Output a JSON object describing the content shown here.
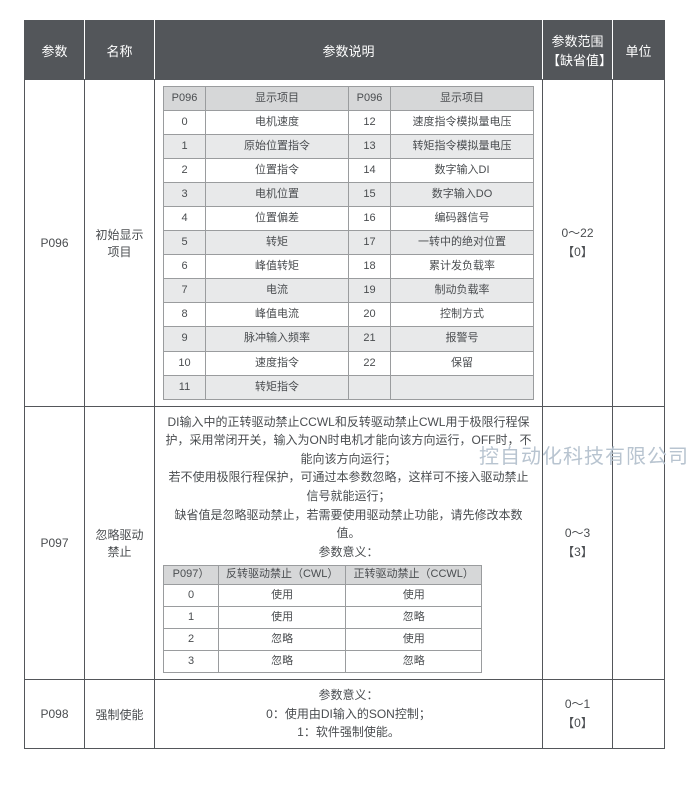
{
  "watermark": "控自动化科技有限公司",
  "headers": {
    "param": "参数",
    "name": "名称",
    "desc": "参数说明",
    "range": "参数范围\n【缺省值】",
    "unit": "单位"
  },
  "rows": [
    {
      "param": "P096",
      "name": "初始显示\n项目",
      "range": "0～22\n【0】",
      "unit": "",
      "p096": {
        "hdr": [
          "P096",
          "显示项目",
          "P096",
          "显示项目"
        ],
        "items": [
          [
            "0",
            "电机速度",
            "12",
            "速度指令模拟量电压"
          ],
          [
            "1",
            "原始位置指令",
            "13",
            "转矩指令模拟量电压"
          ],
          [
            "2",
            "位置指令",
            "14",
            "数字输入DI"
          ],
          [
            "3",
            "电机位置",
            "15",
            "数字输入DO"
          ],
          [
            "4",
            "位置偏差",
            "16",
            "编码器信号"
          ],
          [
            "5",
            "转矩",
            "17",
            "一转中的绝对位置"
          ],
          [
            "6",
            "峰值转矩",
            "18",
            "累计发负载率"
          ],
          [
            "7",
            "电流",
            "19",
            "制动负载率"
          ],
          [
            "8",
            "峰值电流",
            "20",
            "控制方式"
          ],
          [
            "9",
            "脉冲输入频率",
            "21",
            "报警号"
          ],
          [
            "10",
            "速度指令",
            "22",
            "保留"
          ],
          [
            "11",
            "转矩指令",
            "",
            ""
          ]
        ]
      }
    },
    {
      "param": "P097",
      "name": "忽略驱动\n禁止",
      "range": "0～3\n【3】",
      "unit": "",
      "text": "DI输入中的正转驱动禁止CCWL和反转驱动禁止CWL用于极限行程保护，采用常闭开关，输入为ON时电机才能向该方向运行，OFF时，不能向该方向运行；\n若不使用极限行程保护，可通过本参数忽略，这样可不接入驱动禁止信号就能运行；\n缺省值是忽略驱动禁止，若需要使用驱动禁止功能，请先修改本数值。\n参数意义：",
      "p097": {
        "hdr": [
          "P097）",
          "反转驱动禁止（CWL）",
          "正转驱动禁止（CCWL）"
        ],
        "rows": [
          [
            "0",
            "使用",
            "使用"
          ],
          [
            "1",
            "使用",
            "忽略"
          ],
          [
            "2",
            "忽略",
            "使用"
          ],
          [
            "3",
            "忽略",
            "忽略"
          ]
        ]
      }
    },
    {
      "param": "P098",
      "name": "强制使能",
      "range": "0～1\n【0】",
      "unit": "",
      "text": "参数意义：\n0：使用由DI输入的SON控制；\n1：软件强制使能。"
    }
  ]
}
